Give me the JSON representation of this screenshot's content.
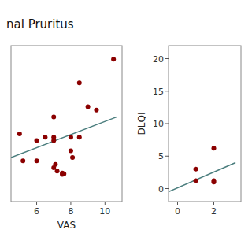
{
  "chart_data": [
    {
      "type": "scatter",
      "title": "nal Pruritus",
      "xlabel": "VAS",
      "xlim": [
        4.5,
        11.0
      ],
      "ylim": [
        -1,
        22
      ],
      "xticks": [
        6,
        8,
        10
      ],
      "tick_labels": "x",
      "series": [
        {
          "type": "scatter",
          "color": "#8B0000",
          "x": [
            5.0,
            5.2,
            6.0,
            6.0,
            6.5,
            7.0,
            7.0,
            7.0,
            7.0,
            7.1,
            7.2,
            7.5,
            7.5,
            7.6,
            8.0,
            8.0,
            8.1,
            8.5,
            8.5,
            9.0,
            9.5,
            10.5
          ],
          "values": [
            9.0,
            5.0,
            8.0,
            5.0,
            8.5,
            11.5,
            8.5,
            8.0,
            4.0,
            4.5,
            3.5,
            3.0,
            3.2,
            3.1,
            8.5,
            6.5,
            5.5,
            16.5,
            8.5,
            13.0,
            12.5,
            20.0
          ]
        },
        {
          "type": "line",
          "color": "#4a7d7d",
          "x": [
            4.5,
            10.7
          ],
          "values": [
            5.5,
            11.5
          ]
        }
      ]
    },
    {
      "type": "scatter",
      "ylabel": "DLQI",
      "xlim": [
        -0.5,
        3.5
      ],
      "ylim": [
        -2,
        22
      ],
      "xticks": [
        0,
        2
      ],
      "yticks": [
        0,
        5,
        10,
        15,
        20
      ],
      "series": [
        {
          "type": "scatter",
          "color": "#8B0000",
          "x": [
            1.0,
            1.0,
            2.0,
            2.0,
            2.0
          ],
          "values": [
            3.0,
            1.2,
            6.2,
            1.2,
            1.0
          ]
        },
        {
          "type": "line",
          "color": "#4a7d7d",
          "x": [
            -0.5,
            3.2
          ],
          "values": [
            -0.5,
            4.0
          ]
        }
      ]
    }
  ]
}
